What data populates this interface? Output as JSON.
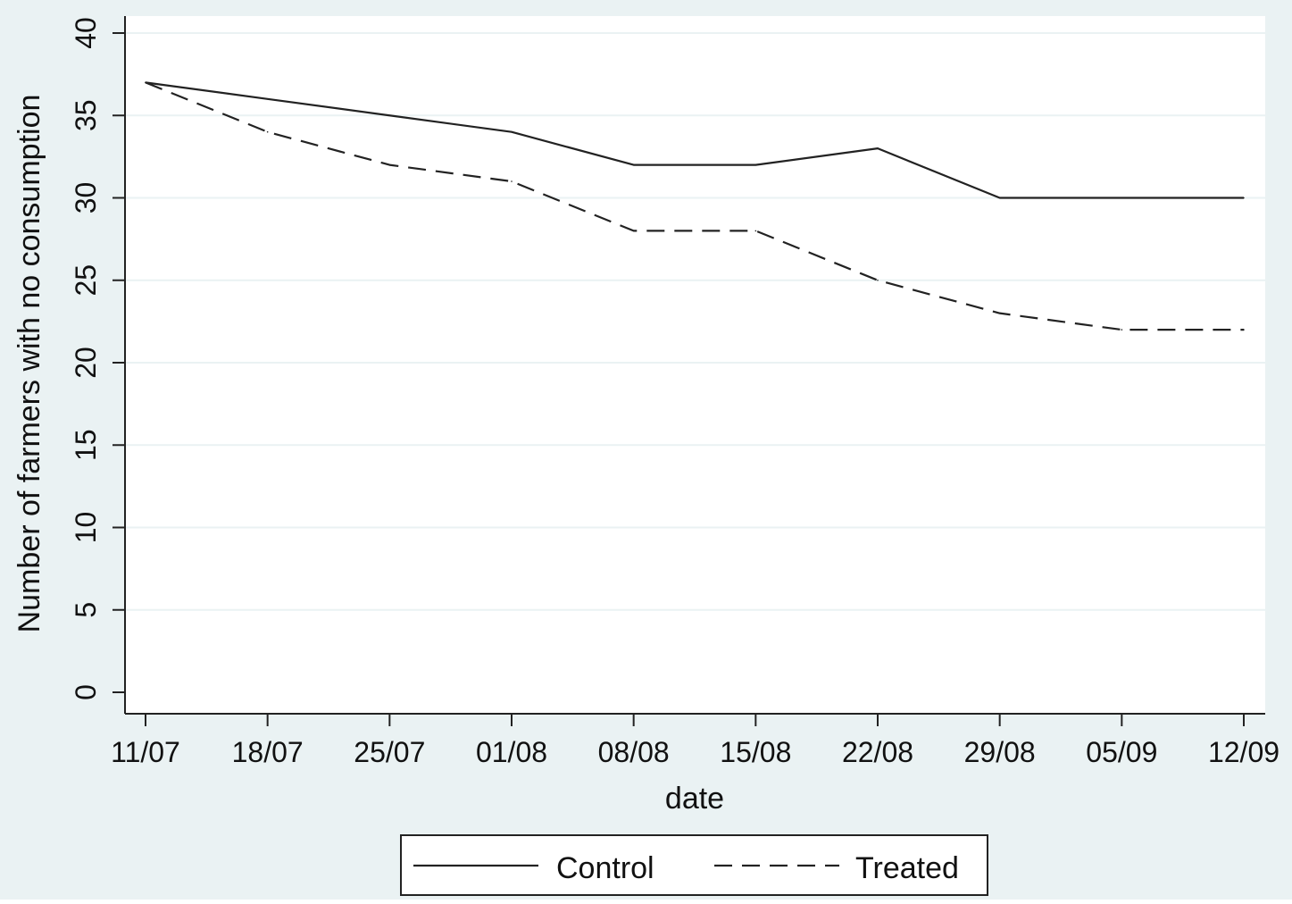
{
  "chart_data": {
    "type": "line",
    "title": "",
    "xlabel": "date",
    "ylabel": "Number of farmers with no consumption",
    "x": [
      "11/07",
      "18/07",
      "25/07",
      "01/08",
      "08/08",
      "15/08",
      "22/08",
      "29/08",
      "05/09",
      "12/09"
    ],
    "x_ticks": [
      "11/07",
      "18/07",
      "25/07",
      "01/08",
      "08/08",
      "15/08",
      "22/08",
      "29/08",
      "05/09",
      "12/09"
    ],
    "y_ticks": [
      0,
      5,
      10,
      15,
      20,
      25,
      30,
      35,
      40
    ],
    "ylim": [
      0,
      40
    ],
    "grid": true,
    "legend_position": "bottom",
    "series": [
      {
        "name": "Control",
        "line_style": "solid",
        "color": "#222222",
        "values": [
          37,
          36,
          35,
          34,
          32,
          32,
          33,
          30,
          30,
          30
        ]
      },
      {
        "name": "Treated",
        "line_style": "dashed",
        "color": "#222222",
        "values": [
          37,
          34,
          32,
          31,
          28,
          28,
          25,
          23,
          22,
          22
        ]
      }
    ],
    "colors": {
      "background": "#eaf2f3",
      "plot_background": "#ffffff",
      "gridline": "#eaf2f3"
    }
  }
}
